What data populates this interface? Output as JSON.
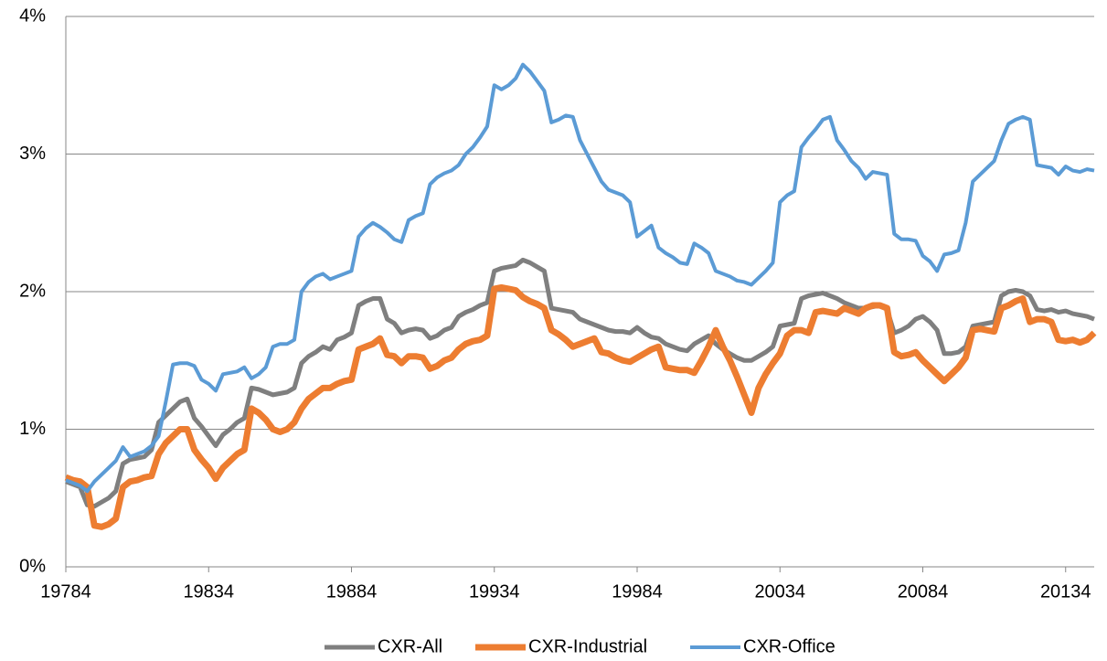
{
  "chart_data": {
    "type": "line",
    "categories": [
      "19784",
      null,
      null,
      null,
      null,
      null,
      null,
      null,
      null,
      null,
      null,
      null,
      null,
      null,
      null,
      null,
      null,
      null,
      null,
      null,
      "19834",
      null,
      null,
      null,
      null,
      null,
      null,
      null,
      null,
      null,
      null,
      null,
      null,
      null,
      null,
      null,
      null,
      null,
      null,
      null,
      "19884",
      null,
      null,
      null,
      null,
      null,
      null,
      null,
      null,
      null,
      null,
      null,
      null,
      null,
      null,
      null,
      null,
      null,
      null,
      null,
      "19934",
      null,
      null,
      null,
      null,
      null,
      null,
      null,
      null,
      null,
      null,
      null,
      null,
      null,
      null,
      null,
      null,
      null,
      null,
      null,
      "19984",
      null,
      null,
      null,
      null,
      null,
      null,
      null,
      null,
      null,
      null,
      null,
      null,
      null,
      null,
      null,
      null,
      null,
      null,
      null,
      "20034",
      null,
      null,
      null,
      null,
      null,
      null,
      null,
      null,
      null,
      null,
      null,
      null,
      null,
      null,
      null,
      null,
      null,
      null,
      null,
      "20084",
      null,
      null,
      null,
      null,
      null,
      null,
      null,
      null,
      null,
      null,
      null,
      null,
      null,
      null,
      null,
      null,
      null,
      null,
      null,
      "20134",
      null,
      null,
      null,
      null
    ],
    "series": [
      {
        "name": "CXR-All",
        "color": "#7f7f7f",
        "values": [
          0.62,
          0.6,
          0.58,
          0.45,
          0.44,
          0.47,
          0.5,
          0.55,
          0.75,
          0.78,
          0.79,
          0.8,
          0.85,
          1.05,
          1.1,
          1.15,
          1.2,
          1.22,
          1.08,
          1.02,
          0.95,
          0.88,
          0.96,
          1.0,
          1.05,
          1.08,
          1.3,
          1.29,
          1.27,
          1.25,
          1.26,
          1.27,
          1.3,
          1.48,
          1.53,
          1.56,
          1.6,
          1.58,
          1.65,
          1.67,
          1.7,
          1.9,
          1.93,
          1.95,
          1.95,
          1.8,
          1.77,
          1.7,
          1.72,
          1.73,
          1.72,
          1.66,
          1.68,
          1.72,
          1.74,
          1.82,
          1.85,
          1.87,
          1.9,
          1.92,
          2.15,
          2.17,
          2.18,
          2.19,
          2.23,
          2.21,
          2.18,
          2.15,
          1.88,
          1.87,
          1.86,
          1.85,
          1.8,
          1.78,
          1.76,
          1.74,
          1.72,
          1.71,
          1.71,
          1.7,
          1.74,
          1.7,
          1.67,
          1.66,
          1.62,
          1.6,
          1.58,
          1.57,
          1.62,
          1.65,
          1.68,
          1.62,
          1.58,
          1.55,
          1.52,
          1.5,
          1.5,
          1.53,
          1.56,
          1.6,
          1.75,
          1.76,
          1.77,
          1.95,
          1.97,
          1.98,
          1.99,
          1.97,
          1.95,
          1.92,
          1.9,
          1.88,
          1.88,
          1.89,
          1.9,
          1.87,
          1.7,
          1.72,
          1.75,
          1.8,
          1.82,
          1.78,
          1.72,
          1.55,
          1.55,
          1.56,
          1.6,
          1.75,
          1.76,
          1.77,
          1.78,
          1.97,
          2.0,
          2.01,
          2.0,
          1.97,
          1.87,
          1.86,
          1.87,
          1.85,
          1.86,
          1.84,
          1.83,
          1.82,
          1.8
        ]
      },
      {
        "name": "CXR-Industrial",
        "color": "#ed7d31",
        "values": [
          0.65,
          0.63,
          0.62,
          0.58,
          0.3,
          0.29,
          0.31,
          0.35,
          0.58,
          0.62,
          0.63,
          0.65,
          0.66,
          0.82,
          0.9,
          0.95,
          1.0,
          1.0,
          0.85,
          0.78,
          0.72,
          0.64,
          0.72,
          0.77,
          0.82,
          0.85,
          1.15,
          1.12,
          1.07,
          1.0,
          0.98,
          1.0,
          1.05,
          1.15,
          1.22,
          1.26,
          1.3,
          1.3,
          1.33,
          1.35,
          1.36,
          1.58,
          1.6,
          1.62,
          1.66,
          1.54,
          1.53,
          1.48,
          1.53,
          1.53,
          1.52,
          1.44,
          1.46,
          1.5,
          1.52,
          1.58,
          1.62,
          1.64,
          1.65,
          1.68,
          2.02,
          2.03,
          2.02,
          2.01,
          1.96,
          1.93,
          1.91,
          1.88,
          1.72,
          1.69,
          1.65,
          1.6,
          1.62,
          1.64,
          1.66,
          1.56,
          1.55,
          1.52,
          1.5,
          1.49,
          1.52,
          1.55,
          1.58,
          1.6,
          1.45,
          1.44,
          1.43,
          1.43,
          1.41,
          1.5,
          1.6,
          1.72,
          1.6,
          1.5,
          1.38,
          1.25,
          1.12,
          1.3,
          1.4,
          1.48,
          1.55,
          1.68,
          1.72,
          1.72,
          1.7,
          1.85,
          1.86,
          1.85,
          1.84,
          1.88,
          1.86,
          1.84,
          1.88,
          1.9,
          1.9,
          1.88,
          1.56,
          1.53,
          1.54,
          1.56,
          1.5,
          1.45,
          1.4,
          1.35,
          1.4,
          1.45,
          1.52,
          1.72,
          1.73,
          1.72,
          1.71,
          1.88,
          1.9,
          1.93,
          1.95,
          1.78,
          1.8,
          1.8,
          1.78,
          1.65,
          1.64,
          1.65,
          1.63,
          1.65,
          1.7
        ]
      },
      {
        "name": "CXR-Office",
        "color": "#5b9bd5",
        "values": [
          0.63,
          0.61,
          0.59,
          0.55,
          0.62,
          0.67,
          0.72,
          0.77,
          0.87,
          0.8,
          0.82,
          0.84,
          0.88,
          0.95,
          1.2,
          1.47,
          1.48,
          1.48,
          1.46,
          1.36,
          1.33,
          1.28,
          1.4,
          1.41,
          1.42,
          1.45,
          1.37,
          1.4,
          1.45,
          1.6,
          1.62,
          1.62,
          1.65,
          2.0,
          2.07,
          2.11,
          2.13,
          2.09,
          2.11,
          2.13,
          2.15,
          2.4,
          2.46,
          2.5,
          2.47,
          2.43,
          2.38,
          2.36,
          2.52,
          2.55,
          2.57,
          2.78,
          2.83,
          2.86,
          2.88,
          2.92,
          3.0,
          3.05,
          3.12,
          3.2,
          3.5,
          3.47,
          3.5,
          3.55,
          3.65,
          3.6,
          3.53,
          3.46,
          3.23,
          3.25,
          3.28,
          3.27,
          3.1,
          3.0,
          2.9,
          2.8,
          2.74,
          2.72,
          2.7,
          2.65,
          2.4,
          2.44,
          2.48,
          2.32,
          2.28,
          2.25,
          2.21,
          2.2,
          2.35,
          2.32,
          2.28,
          2.15,
          2.13,
          2.11,
          2.08,
          2.07,
          2.05,
          2.1,
          2.15,
          2.21,
          2.65,
          2.7,
          2.73,
          3.05,
          3.12,
          3.18,
          3.25,
          3.27,
          3.1,
          3.03,
          2.95,
          2.9,
          2.82,
          2.87,
          2.86,
          2.85,
          2.42,
          2.38,
          2.38,
          2.37,
          2.26,
          2.22,
          2.15,
          2.27,
          2.28,
          2.3,
          2.5,
          2.8,
          2.85,
          2.9,
          2.95,
          3.1,
          3.22,
          3.25,
          3.27,
          3.25,
          2.92,
          2.91,
          2.9,
          2.85,
          2.91,
          2.88,
          2.87,
          2.89,
          2.88
        ]
      }
    ],
    "ylim": [
      0,
      4
    ],
    "yticks": [
      {
        "value": 0,
        "label": "0%"
      },
      {
        "value": 1,
        "label": "1%"
      },
      {
        "value": 2,
        "label": "2%"
      },
      {
        "value": 3,
        "label": "3%"
      },
      {
        "value": 4,
        "label": "4%"
      }
    ],
    "grid": true,
    "legend": "bottom"
  }
}
